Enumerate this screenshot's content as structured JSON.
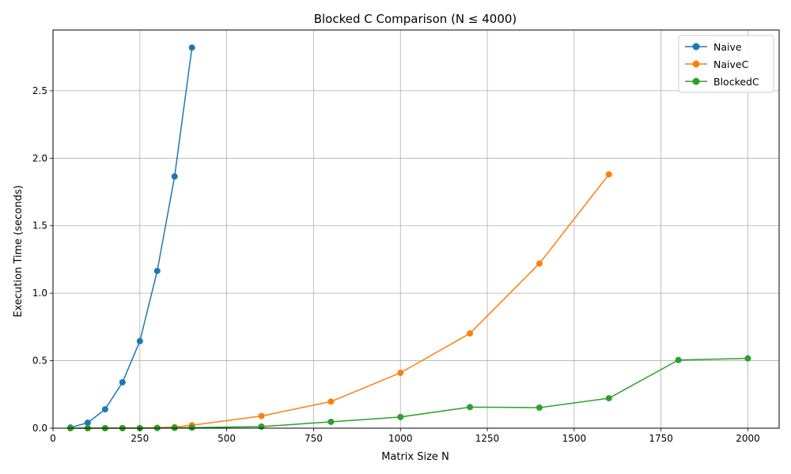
{
  "chart_data": {
    "type": "line",
    "title": "Blocked C Comparison (N ≤ 4000)",
    "xlabel": "Matrix Size N",
    "ylabel": "Execution Time (seconds)",
    "xlim": [
      0,
      2090
    ],
    "ylim": [
      0,
      2.95
    ],
    "xticks": [
      0,
      250,
      500,
      750,
      1000,
      1250,
      1500,
      1750,
      2000
    ],
    "yticks": [
      0.0,
      0.5,
      1.0,
      1.5,
      2.0,
      2.5
    ],
    "xtick_labels": [
      "0",
      "250",
      "500",
      "750",
      "1000",
      "1250",
      "1500",
      "1750",
      "2000"
    ],
    "ytick_labels": [
      "0.0",
      "0.5",
      "1.0",
      "1.5",
      "2.0",
      "2.5"
    ],
    "grid": true,
    "legend_position": "top-right",
    "series": [
      {
        "name": "Naive",
        "color": "#1f77b4",
        "x": [
          50,
          100,
          150,
          200,
          250,
          300,
          350,
          400
        ],
        "y": [
          0.005,
          0.04,
          0.14,
          0.34,
          0.645,
          1.165,
          1.865,
          2.82
        ]
      },
      {
        "name": "NaiveC",
        "color": "#ff7f0e",
        "x": [
          50,
          100,
          150,
          200,
          250,
          300,
          350,
          400,
          600,
          800,
          1000,
          1200,
          1400,
          1600
        ],
        "y": [
          0.0,
          0.0,
          0.0,
          0.001,
          0.002,
          0.004,
          0.008,
          0.022,
          0.09,
          0.197,
          0.41,
          0.702,
          1.22,
          1.88
        ]
      },
      {
        "name": "BlockedC",
        "color": "#2ca02c",
        "x": [
          50,
          100,
          150,
          200,
          250,
          300,
          350,
          400,
          600,
          800,
          1000,
          1200,
          1400,
          1600,
          1800,
          2000
        ],
        "y": [
          0.0,
          0.0,
          0.0,
          0.0,
          0.0,
          0.001,
          0.002,
          0.004,
          0.012,
          0.047,
          0.083,
          0.156,
          0.152,
          0.222,
          0.505,
          0.517
        ]
      }
    ]
  }
}
